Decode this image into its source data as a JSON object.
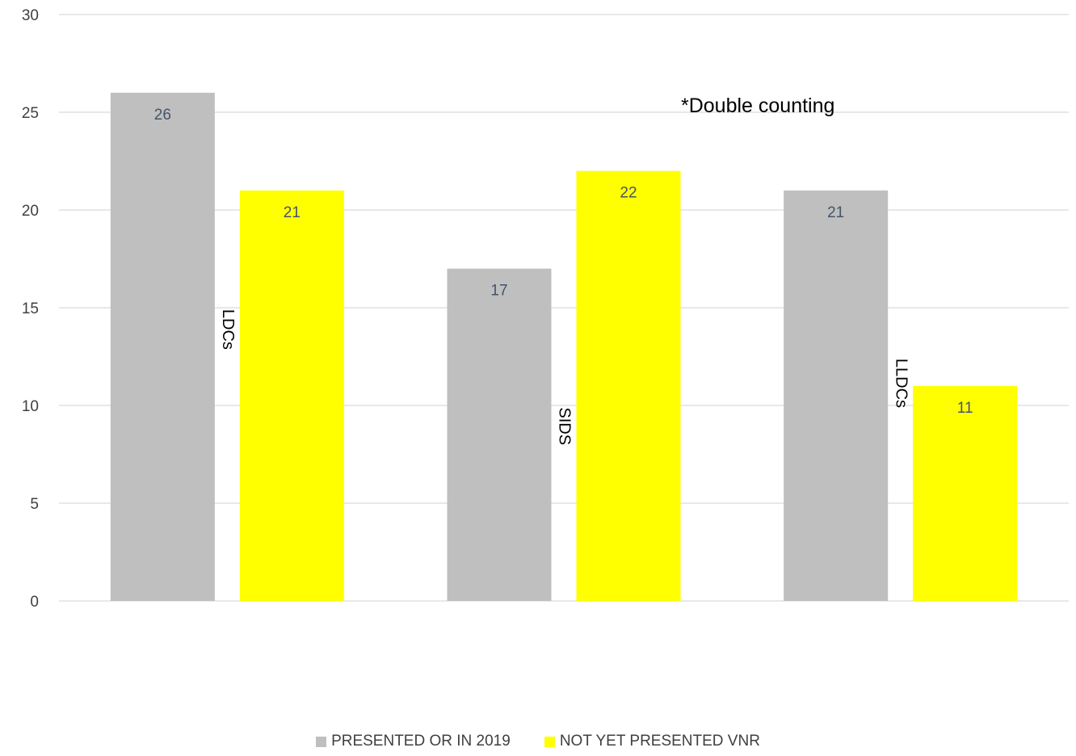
{
  "chart_data": {
    "type": "bar",
    "categories": [
      "LDCs",
      "SIDS",
      "LLDCs"
    ],
    "series": [
      {
        "name": "PRESENTED OR IN 2019",
        "values": [
          26,
          17,
          21
        ],
        "color": "#bfbfbf"
      },
      {
        "name": "NOT YET PRESENTED VNR",
        "values": [
          21,
          22,
          11
        ],
        "color": "#ffff00"
      }
    ],
    "yticks": [
      0,
      5,
      10,
      15,
      20,
      25,
      30
    ],
    "ylim": [
      0,
      30
    ],
    "annotation": "*Double counting",
    "grid": true,
    "legend_position": "bottom",
    "data_labels": true
  }
}
